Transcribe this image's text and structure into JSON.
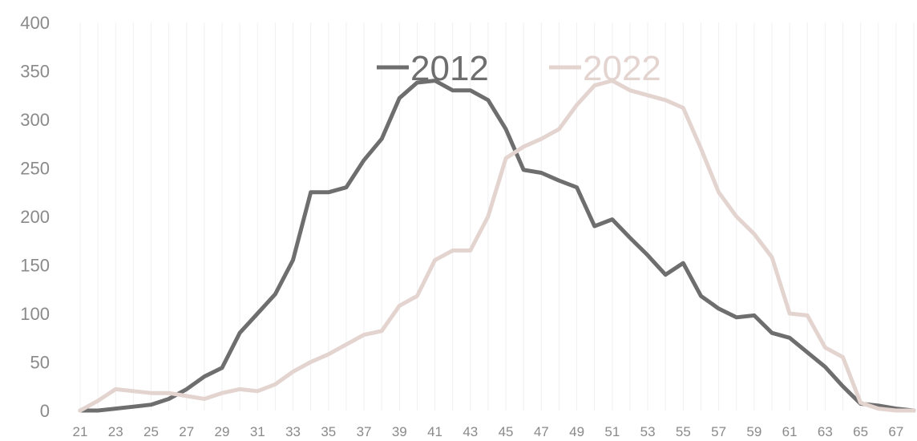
{
  "chart_data": {
    "type": "line",
    "title": "",
    "xlabel": "",
    "ylabel": "",
    "ylim": [
      0,
      400
    ],
    "xlim": [
      21,
      68
    ],
    "yticks": [
      0,
      50,
      100,
      150,
      200,
      250,
      300,
      350,
      400
    ],
    "xticks": [
      21,
      23,
      25,
      27,
      29,
      31,
      33,
      35,
      37,
      39,
      41,
      43,
      45,
      47,
      49,
      51,
      53,
      55,
      57,
      59,
      61,
      63,
      65,
      67
    ],
    "grid": "vertical",
    "legend_position": "top-center",
    "x": [
      21,
      22,
      23,
      24,
      25,
      26,
      27,
      28,
      29,
      30,
      31,
      32,
      33,
      34,
      35,
      36,
      37,
      38,
      39,
      40,
      41,
      42,
      43,
      44,
      45,
      46,
      47,
      48,
      49,
      50,
      51,
      52,
      53,
      54,
      55,
      56,
      57,
      58,
      59,
      60,
      61,
      62,
      63,
      64,
      65,
      66,
      67,
      68
    ],
    "series": [
      {
        "name": "2012",
        "color": "#6e6e6e",
        "values": [
          0,
          0,
          2,
          4,
          6,
          12,
          22,
          35,
          44,
          80,
          100,
          120,
          155,
          225,
          225,
          230,
          258,
          280,
          322,
          338,
          340,
          330,
          330,
          320,
          290,
          248,
          245,
          237,
          230,
          190,
          197,
          178,
          160,
          140,
          152,
          118,
          105,
          96,
          98,
          80,
          75,
          60,
          45,
          25,
          7,
          5,
          2,
          0
        ]
      },
      {
        "name": "2022",
        "color": "#e3d4d0",
        "values": [
          0,
          10,
          22,
          20,
          18,
          18,
          15,
          12,
          18,
          22,
          20,
          27,
          40,
          50,
          58,
          68,
          78,
          82,
          108,
          118,
          155,
          165,
          165,
          200,
          260,
          272,
          280,
          290,
          315,
          335,
          340,
          330,
          325,
          320,
          312,
          270,
          225,
          200,
          182,
          158,
          100,
          98,
          65,
          55,
          8,
          2,
          0,
          0
        ]
      }
    ]
  }
}
